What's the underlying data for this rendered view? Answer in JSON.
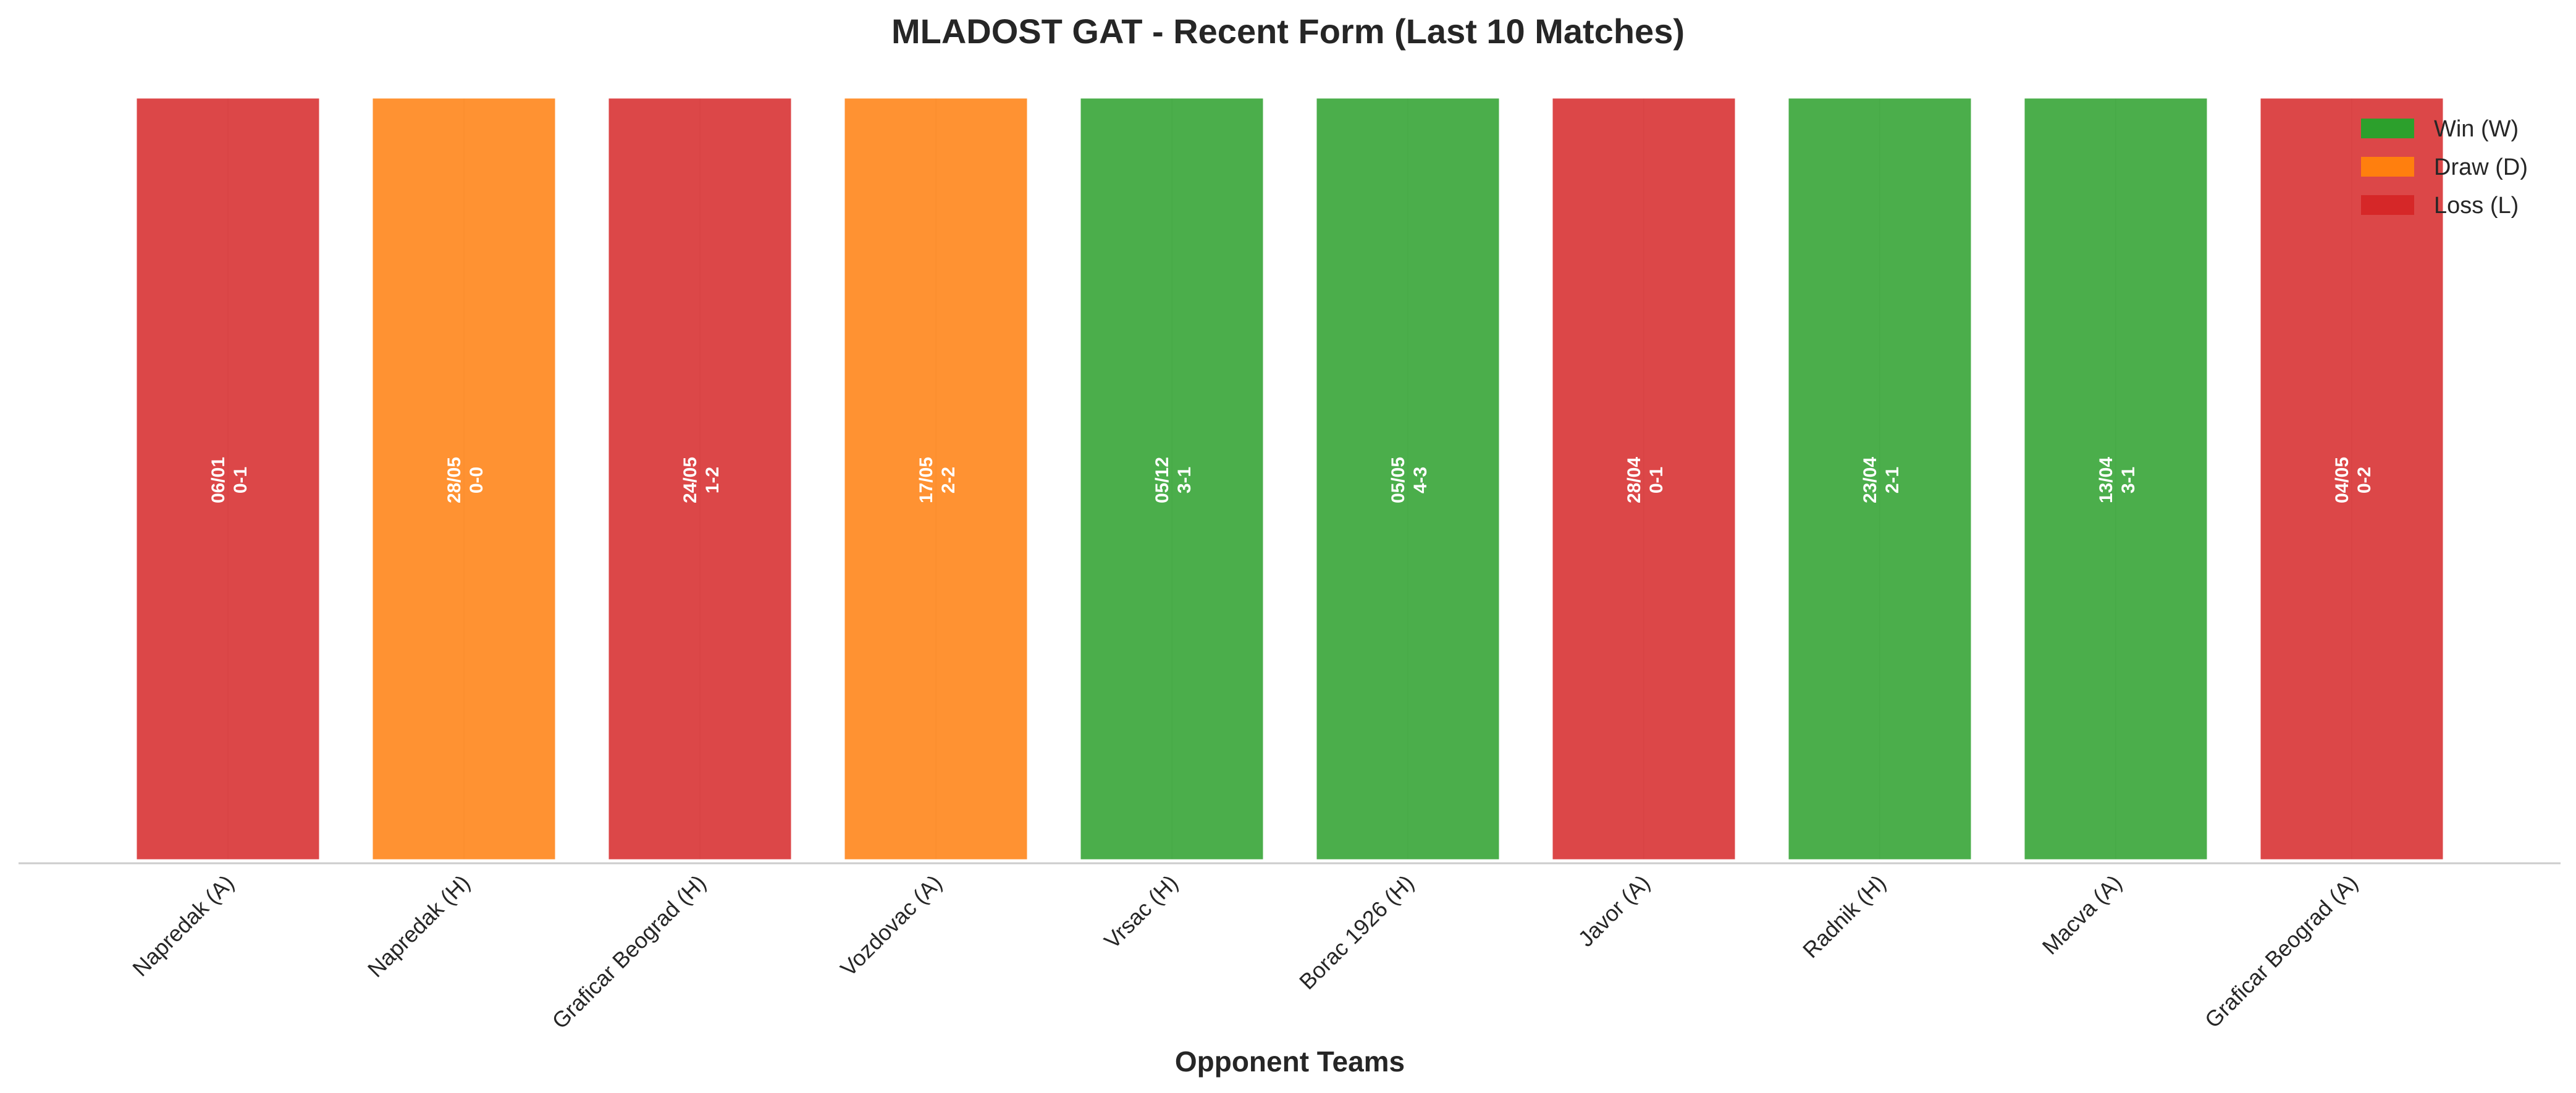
{
  "chart_data": {
    "type": "bar",
    "title": "MLADOST GAT - Recent Form (Last 10 Matches)",
    "xlabel": "Opponent Teams",
    "ylabel": "",
    "ylim": [
      0,
      1
    ],
    "grid": true,
    "legend_position": "top-right",
    "colors": {
      "W": "#2ca02c",
      "D": "#ff7f0e",
      "L": "#d62728"
    },
    "legend": [
      {
        "key": "W",
        "label": "Win (W)"
      },
      {
        "key": "D",
        "label": "Draw (D)"
      },
      {
        "key": "L",
        "label": "Loss (L)"
      }
    ],
    "categories": [
      "Napredak (A)",
      "Napredak (H)",
      "Graficar Beograd (H)",
      "Vozdovac (A)",
      "Vrsac (H)",
      "Borac 1926 (H)",
      "Javor (A)",
      "Radnik (H)",
      "Macva (A)",
      "Graficar Beograd (A)"
    ],
    "values": [
      1,
      1,
      1,
      1,
      1,
      1,
      1,
      1,
      1,
      1
    ],
    "results": [
      "L",
      "D",
      "L",
      "D",
      "W",
      "W",
      "L",
      "W",
      "W",
      "L"
    ],
    "dates": [
      "06/01",
      "28/05",
      "24/05",
      "17/05",
      "05/12",
      "05/05",
      "28/04",
      "23/04",
      "13/04",
      "04/05"
    ],
    "scores": [
      "0-1",
      "0-0",
      "1-2",
      "2-2",
      "3-1",
      "4-3",
      "0-1",
      "2-1",
      "3-1",
      "0-2"
    ]
  }
}
